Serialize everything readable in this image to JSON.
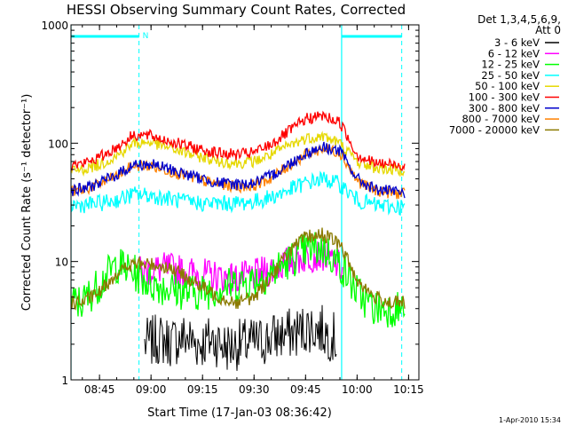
{
  "chart_data": {
    "type": "line",
    "title": "HESSI Observing Summary Count Rates, Corrected",
    "xlabel": "Start Time (17-Jan-03 08:36:42)",
    "ylabel": "Corrected Count Rate (s⁻¹ detector⁻¹)",
    "ylog": true,
    "xlim": [
      "08:36:42",
      "10:18:00"
    ],
    "ylim": [
      1,
      1000
    ],
    "x_ticks": [
      "08:45",
      "09:00",
      "09:15",
      "09:30",
      "09:45",
      "10:00",
      "10:15"
    ],
    "y_ticks": [
      "1",
      "10",
      "100",
      "1000"
    ],
    "legend_header": [
      "Det 1,3,4,5,6,9,",
      "Att 0"
    ],
    "legend_position": "right",
    "series": [
      {
        "name": "3 - 6 keV",
        "color": "#000000",
        "x": [
          "08:58",
          "09:02",
          "09:06",
          "09:10",
          "09:14",
          "09:18",
          "09:22",
          "09:26",
          "09:32",
          "09:38",
          "09:42",
          "09:46",
          "09:50",
          "09:54"
        ],
        "y": [
          2.0,
          2.2,
          2.1,
          2.3,
          2.0,
          2.2,
          1.9,
          2.0,
          2.1,
          2.4,
          2.5,
          2.8,
          2.6,
          2.2
        ]
      },
      {
        "name": "6 - 12 keV",
        "color": "#ff00ff",
        "x": [
          "08:56",
          "09:00",
          "09:05",
          "09:10",
          "09:15",
          "09:20",
          "09:25",
          "09:30",
          "09:35",
          "09:40",
          "09:45",
          "09:50",
          "09:53",
          "09:56"
        ],
        "y": [
          8,
          8.5,
          8.8,
          8.2,
          7.8,
          7.4,
          7.2,
          7.6,
          8.5,
          10,
          11,
          11.5,
          10,
          8.5
        ]
      },
      {
        "name": "12 - 25 keV",
        "color": "#00ff00",
        "x": [
          "08:36:42",
          "08:40",
          "08:45",
          "08:50",
          "08:55",
          "09:00",
          "09:05",
          "09:10",
          "09:15",
          "09:20",
          "09:25",
          "09:30",
          "09:35",
          "09:40",
          "09:45",
          "09:50",
          "09:55",
          "10:00",
          "10:05",
          "10:10",
          "10:14"
        ],
        "y": [
          4.5,
          4.5,
          6.5,
          9.5,
          8,
          6.5,
          6,
          5.5,
          5.5,
          6,
          6.5,
          7,
          8,
          10,
          12.5,
          13,
          9.5,
          5.5,
          4,
          4,
          4
        ]
      },
      {
        "name": "25 - 50 keV",
        "color": "#00ffff",
        "x": [
          "08:36:42",
          "08:40",
          "08:45",
          "08:50",
          "08:55",
          "09:00",
          "09:05",
          "09:10",
          "09:15",
          "09:20",
          "09:25",
          "09:30",
          "09:35",
          "09:40",
          "09:45",
          "09:50",
          "09:55",
          "10:00",
          "10:05",
          "10:10",
          "10:14"
        ],
        "y": [
          30,
          30,
          31,
          33,
          37,
          36,
          34,
          32,
          31,
          31,
          31,
          32,
          35,
          40,
          46,
          50,
          45,
          33,
          30,
          29,
          29
        ]
      },
      {
        "name": "50 - 100 keV",
        "color": "#e6d800",
        "x": [
          "08:36:42",
          "08:40",
          "08:45",
          "08:50",
          "08:55",
          "09:00",
          "09:05",
          "09:10",
          "09:15",
          "09:20",
          "09:25",
          "09:30",
          "09:35",
          "09:40",
          "09:45",
          "09:50",
          "09:55",
          "10:00",
          "10:05",
          "10:10",
          "10:14"
        ],
        "y": [
          58,
          60,
          66,
          78,
          100,
          102,
          92,
          83,
          76,
          70,
          68,
          70,
          80,
          95,
          110,
          115,
          100,
          70,
          62,
          60,
          60
        ]
      },
      {
        "name": "100 - 300 keV",
        "color": "#ff0000",
        "x": [
          "08:36:42",
          "08:40",
          "08:45",
          "08:50",
          "08:55",
          "09:00",
          "09:05",
          "09:10",
          "09:15",
          "09:20",
          "09:25",
          "09:30",
          "09:35",
          "09:40",
          "09:45",
          "09:50",
          "09:55",
          "10:00",
          "10:05",
          "10:10",
          "10:14"
        ],
        "y": [
          65,
          67,
          76,
          92,
          118,
          115,
          105,
          95,
          88,
          82,
          80,
          83,
          98,
          125,
          160,
          170,
          150,
          80,
          68,
          66,
          65
        ]
      },
      {
        "name": "300 - 800 keV",
        "color": "#0000cc",
        "x": [
          "08:36:42",
          "08:40",
          "08:45",
          "08:50",
          "08:55",
          "09:00",
          "09:05",
          "09:10",
          "09:15",
          "09:20",
          "09:25",
          "09:30",
          "09:35",
          "09:40",
          "09:45",
          "09:50",
          "09:55",
          "10:00",
          "10:05",
          "10:10",
          "10:14"
        ],
        "y": [
          40,
          41,
          46,
          54,
          66,
          66,
          61,
          55,
          50,
          46,
          45,
          46,
          53,
          66,
          82,
          93,
          86,
          50,
          41,
          39,
          38
        ]
      },
      {
        "name": "800 - 7000 keV",
        "color": "#ff8000",
        "x": [
          "08:36:42",
          "08:40",
          "08:45",
          "08:50",
          "08:55",
          "09:00",
          "09:05",
          "09:10",
          "09:15",
          "09:20",
          "09:25",
          "09:30",
          "09:35",
          "09:40",
          "09:45",
          "09:50",
          "09:55",
          "10:00",
          "10:05",
          "10:10",
          "10:14"
        ],
        "y": [
          39,
          40,
          45,
          53,
          65,
          64,
          59,
          53,
          48,
          45,
          43,
          44,
          51,
          64,
          80,
          90,
          84,
          48,
          40,
          38,
          37
        ]
      },
      {
        "name": "7000 - 20000 keV",
        "color": "#8b7a00",
        "x": [
          "08:36:42",
          "08:40",
          "08:45",
          "08:50",
          "08:55",
          "09:00",
          "09:05",
          "09:10",
          "09:15",
          "09:20",
          "09:25",
          "09:30",
          "09:35",
          "09:40",
          "09:45",
          "09:50",
          "09:55",
          "10:00",
          "10:05",
          "10:10",
          "10:14"
        ],
        "y": [
          4.5,
          4.5,
          5.5,
          8,
          9.5,
          9.5,
          9,
          7.5,
          6,
          5,
          4.5,
          5,
          7.5,
          12,
          16,
          17,
          14,
          7,
          5,
          4.5,
          4.5
        ]
      }
    ],
    "annotations": {
      "attenuator_bar_color": "#00ffff",
      "marker_label": "N",
      "marker_label_time": "08:56:30",
      "solid_lines": [
        "08:36:42",
        "09:55:30"
      ],
      "dashed_lines": [
        "08:56:30",
        "10:13:00"
      ],
      "top_bars": [
        [
          "08:36:42",
          "08:56:30"
        ],
        [
          "09:55:30",
          "10:13:00"
        ]
      ]
    },
    "timestamp": "1-Apr-2010 15:34"
  }
}
